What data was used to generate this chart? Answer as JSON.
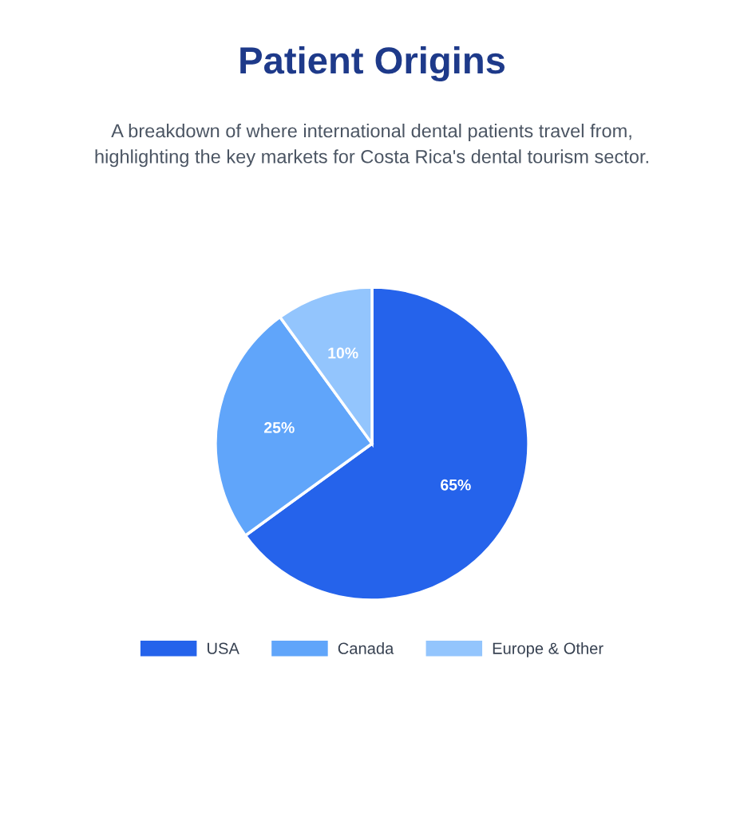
{
  "chart_data": {
    "type": "pie",
    "title": "Patient Origins",
    "subtitle": "A breakdown of where international dental patients travel from, highlighting the key markets for Costa Rica's dental tourism sector.",
    "categories": [
      "USA",
      "Canada",
      "Europe & Other"
    ],
    "values": [
      65,
      25,
      10
    ],
    "colors": [
      "#2563eb",
      "#60a5fa",
      "#93c5fd"
    ],
    "value_labels": [
      "65%",
      "25%",
      "10%"
    ],
    "legend": "bottom"
  }
}
